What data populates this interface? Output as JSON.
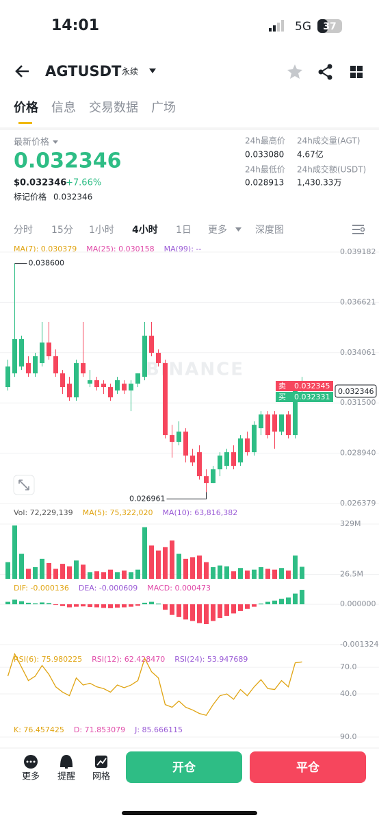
{
  "status": {
    "time": "14:01",
    "network": "5G",
    "battery": "37"
  },
  "header": {
    "symbol": "AGTUSDT",
    "contract": "永续"
  },
  "tabs": [
    "价格",
    "信息",
    "交易数据",
    "广场"
  ],
  "ticker": {
    "label": "最新价格",
    "price": "0.032346",
    "usd": "$0.032346",
    "change": "+7.66%",
    "mark_label": "标记价格",
    "mark_price": "0.032346",
    "stats": [
      {
        "label": "24h最高价",
        "value": "0.033080"
      },
      {
        "label": "24h成交量(AGT)",
        "value": "4.67亿"
      },
      {
        "label": "24h最低价",
        "value": "0.028913"
      },
      {
        "label": "24h成交额(USDT)",
        "value": "1,430.33万"
      }
    ]
  },
  "intervals": [
    "分时",
    "15分",
    "1小时",
    "4小时",
    "1日",
    "更多",
    "深度图"
  ],
  "watermark": "BINANCE",
  "orderbook": {
    "ask_side": "卖",
    "ask": "0.032345",
    "bid_side": "买",
    "bid": "0.032331",
    "last": "0.032346"
  },
  "chart_data": [
    {
      "type": "candlestick",
      "legend": [
        {
          "text": "MA(7): 0.030379",
          "color": "#e0a412"
        },
        {
          "text": "MA(25): 0.030158",
          "color": "#e04aa8"
        },
        {
          "text": "MA(99): --",
          "color": "#9a5bd6"
        }
      ],
      "ylim": [
        0.026379,
        0.039182
      ],
      "yticks": [
        0.039182,
        0.036621,
        0.034061,
        {
          "value": 0.0315,
          "label": "0.031500"
        },
        {
          "value": 0.02894,
          "label": "0.028940"
        },
        0.026379
      ],
      "grid": true,
      "up_color": "#2ebd85",
      "down_color": "#f6465d",
      "annotations": [
        {
          "value": 0.0386,
          "label": "0.038600"
        },
        {
          "value": 0.026961,
          "label": "0.026961"
        }
      ],
      "candles": [
        [
          0.032307,
          0.033703,
          0.032132,
          0.033354
        ],
        [
          0.033005,
          0.0386,
          0.03283,
          0.03475
        ],
        [
          0.033354,
          0.034924,
          0.033179,
          0.03475
        ],
        [
          0.033528,
          0.033877,
          0.03283,
          0.033005
        ],
        [
          0.033005,
          0.034052,
          0.03283,
          0.033877
        ],
        [
          0.033528,
          0.035622,
          0.033354,
          0.034575
        ],
        [
          0.034575,
          0.035622,
          0.033703,
          0.033877
        ],
        [
          0.033877,
          0.034226,
          0.03283,
          0.033005
        ],
        [
          0.033005,
          0.033179,
          0.031958,
          0.032307
        ],
        [
          0.032481,
          0.03283,
          0.031609,
          0.031783
        ],
        [
          0.031783,
          0.033703,
          0.031609,
          0.033528
        ],
        [
          0.033528,
          0.035622,
          0.03283,
          0.033005
        ],
        [
          0.032481,
          0.033179,
          0.032307,
          0.032656
        ],
        [
          0.032656,
          0.03283,
          0.032132,
          0.032307
        ],
        [
          0.032481,
          0.032656,
          0.031958,
          0.032307
        ],
        [
          0.032307,
          0.032481,
          0.031609,
          0.031783
        ],
        [
          0.032132,
          0.03283,
          0.031958,
          0.032656
        ],
        [
          0.032481,
          0.032656,
          0.031958,
          0.032132
        ],
        [
          0.032132,
          0.032656,
          0.031085,
          0.032481
        ],
        [
          0.032481,
          0.033005,
          0.032307,
          0.033005
        ],
        [
          0.03283,
          0.035622,
          0.032656,
          0.034924
        ],
        [
          0.034924,
          0.035622,
          0.033877,
          0.034052
        ],
        [
          0.034052,
          0.034226,
          0.033354,
          0.033528
        ],
        [
          0.033528,
          0.033703,
          0.029689,
          0.029864
        ],
        [
          0.029864,
          0.030387,
          0.028712,
          0.029515
        ],
        [
          0.029515,
          0.030562,
          0.02934,
          0.030038
        ],
        [
          0.030038,
          0.030213,
          0.028468,
          0.028817
        ],
        [
          0.028817,
          0.029166,
          0.028293,
          0.028468
        ],
        [
          0.028991,
          0.02934,
          0.027595,
          0.02777
        ],
        [
          0.02777,
          0.028119,
          0.026961,
          0.027421
        ],
        [
          0.027421,
          0.028293,
          0.027421,
          0.028119
        ],
        [
          0.028119,
          0.028991,
          0.02777,
          0.028817
        ],
        [
          0.028293,
          0.029166,
          0.028119,
          0.028991
        ],
        [
          0.028991,
          0.02934,
          0.028119,
          0.028293
        ],
        [
          0.028468,
          0.029864,
          0.028293,
          0.029689
        ],
        [
          0.029689,
          0.030038,
          0.028817,
          0.028991
        ],
        [
          0.028991,
          0.030562,
          0.028817,
          0.030387
        ],
        [
          0.030213,
          0.031085,
          0.029864,
          0.030911
        ],
        [
          0.030911,
          0.031085,
          0.029689,
          0.029864
        ],
        [
          0.030911,
          0.031085,
          0.029166,
          0.030038
        ],
        [
          0.030038,
          0.030911,
          0.029864,
          0.030911
        ],
        [
          0.030911,
          0.031085,
          0.029689,
          0.029864
        ],
        [
          0.029864,
          0.032481,
          0.029689,
          0.032345
        ],
        [
          0.032132,
          0.03283,
          0.031958,
          0.032346
        ]
      ]
    },
    {
      "type": "bar",
      "legend": [
        {
          "text": "Vol: 72,229,139",
          "color": "#555"
        },
        {
          "text": "MA(5): 75,322,020",
          "color": "#e0a412"
        },
        {
          "text": "MA(10): 63,816,382",
          "color": "#9a5bd6"
        }
      ],
      "ylim": [
        0,
        329000000
      ],
      "yticks": [
        {
          "value": 329000000,
          "label": "329M"
        },
        {
          "value": 26500000,
          "label": "26.5M"
        }
      ],
      "grid": true,
      "values": [
        100000000,
        320000000,
        150000000,
        60000000,
        70000000,
        120000000,
        95000000,
        60000000,
        90000000,
        75000000,
        110000000,
        85000000,
        40000000,
        45000000,
        40000000,
        55000000,
        40000000,
        50000000,
        40000000,
        55000000,
        310000000,
        200000000,
        170000000,
        190000000,
        230000000,
        150000000,
        120000000,
        130000000,
        140000000,
        100000000,
        70000000,
        80000000,
        75000000,
        45000000,
        65000000,
        50000000,
        55000000,
        70000000,
        60000000,
        55000000,
        65000000,
        50000000,
        140000000,
        72229139
      ]
    },
    {
      "type": "bar",
      "legend": [
        {
          "text": "DIF: -0.000136",
          "color": "#e0a412"
        },
        {
          "text": "DEA: -0.000609",
          "color": "#9a5bd6"
        },
        {
          "text": "MACD: 0.000473",
          "color": "#e04aa8"
        }
      ],
      "ylim": [
        -0.001324,
        0.0007
      ],
      "yticks": [
        {
          "value": 0,
          "label": "0.000000"
        },
        -0.001324
      ],
      "grid": true,
      "values": [
        8e-05,
        0.00015,
        0.0001,
        5e-05,
        3e-05,
        6e-05,
        4e-05,
        -2e-05,
        -6e-05,
        -0.0001,
        -8e-05,
        -7e-05,
        -9e-05,
        -0.0001,
        -0.00012,
        -0.00013,
        -0.00011,
        -0.0001,
        -8e-05,
        -5e-05,
        5e-05,
        8e-05,
        2e-05,
        -0.00018,
        -0.00035,
        -0.00042,
        -0.0005,
        -0.00055,
        -0.00062,
        -0.00065,
        -0.00055,
        -0.00045,
        -0.00038,
        -0.0003,
        -0.00022,
        -0.00015,
        -8e-05,
        2e-05,
        8e-05,
        0.00012,
        0.00018,
        0.00022,
        0.00035,
        0.000473
      ]
    },
    {
      "type": "line",
      "legend": [
        {
          "text": "RSI(6): 75.980225",
          "color": "#e0a412"
        },
        {
          "text": "RSI(12): 62.428470",
          "color": "#e04aa8"
        },
        {
          "text": "RSI(24): 53.947689",
          "color": "#9a5bd6"
        }
      ],
      "ylim": [
        10,
        87
      ],
      "yticks": [
        {
          "value": 70,
          "label": "70.0"
        },
        {
          "value": 40,
          "label": "40.0"
        }
      ],
      "grid": true,
      "series": [
        {
          "color": "#e0a412",
          "values": [
            60,
            85,
            70,
            55,
            60,
            72,
            62,
            48,
            42,
            38,
            58,
            50,
            52,
            48,
            46,
            42,
            50,
            47,
            50,
            55,
            80,
            65,
            58,
            28,
            25,
            32,
            25,
            22,
            18,
            16,
            28,
            38,
            40,
            34,
            45,
            38,
            48,
            56,
            46,
            45,
            55,
            48,
            75,
            75.980225
          ]
        }
      ]
    },
    {
      "type": "line",
      "legend": [
        {
          "text": "K: 76.457425",
          "color": "#e0a412"
        },
        {
          "text": "D: 71.853079",
          "color": "#e04aa8"
        },
        {
          "text": "J: 85.666115",
          "color": "#9a5bd6"
        }
      ],
      "ylim": [
        0,
        95
      ],
      "yticks": [
        {
          "value": 90,
          "label": "90.0"
        }
      ],
      "grid": true,
      "series": []
    }
  ],
  "bottom": {
    "items": [
      "更多",
      "提醒",
      "网格"
    ],
    "open": "开仓",
    "close": "平仓"
  }
}
